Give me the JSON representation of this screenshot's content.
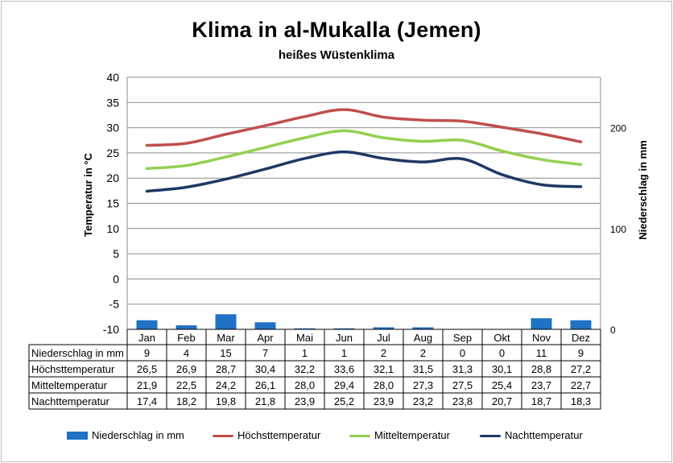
{
  "title": "Klima in al-Mukalla (Jemen)",
  "subtitle": "heißes Wüstenklima",
  "chart_data": {
    "type": "bar+line",
    "ylabel": "Temperatur in °C",
    "y2label": "Niederschlag in mm",
    "ylim": [
      -10,
      40
    ],
    "yticks": [
      40,
      35,
      30,
      25,
      20,
      15,
      10,
      5,
      0,
      -5,
      -10
    ],
    "y2lim": [
      0,
      250
    ],
    "y2ticks": [
      200,
      100,
      0
    ],
    "grid": true,
    "legend_placement": "bottom",
    "categories": [
      "Jan",
      "Feb",
      "Mar",
      "Apr",
      "Mai",
      "Jun",
      "Jul",
      "Aug",
      "Sep",
      "Okt",
      "Nov",
      "Dez"
    ],
    "series": [
      {
        "name": "Niederschlag in mm",
        "type": "bar",
        "axis": "right",
        "color": "#1f72c4",
        "values": [
          "9",
          "4",
          "15",
          "7",
          "1",
          "1",
          "2",
          "2",
          "0",
          "0",
          "11",
          "9"
        ]
      },
      {
        "name": "Höchsttemperatur",
        "type": "line",
        "axis": "left",
        "color": "#c0504d",
        "values": [
          "26,5",
          "26,9",
          "28,7",
          "30,4",
          "32,2",
          "33,6",
          "32,1",
          "31,5",
          "31,3",
          "30,1",
          "28,8",
          "27,2"
        ]
      },
      {
        "name": "Mitteltemperatur",
        "type": "line",
        "axis": "left",
        "color": "#92d050",
        "values": [
          "21,9",
          "22,5",
          "24,2",
          "26,1",
          "28,0",
          "29,4",
          "28,0",
          "27,3",
          "27,5",
          "25,4",
          "23,7",
          "22,7"
        ]
      },
      {
        "name": "Nachttemperatur",
        "type": "line",
        "axis": "left",
        "color": "#1f3864",
        "values": [
          "17,4",
          "18,2",
          "19,8",
          "21,8",
          "23,9",
          "25,2",
          "23,9",
          "23,2",
          "23,8",
          "20,7",
          "18,7",
          "18,3"
        ]
      }
    ]
  }
}
